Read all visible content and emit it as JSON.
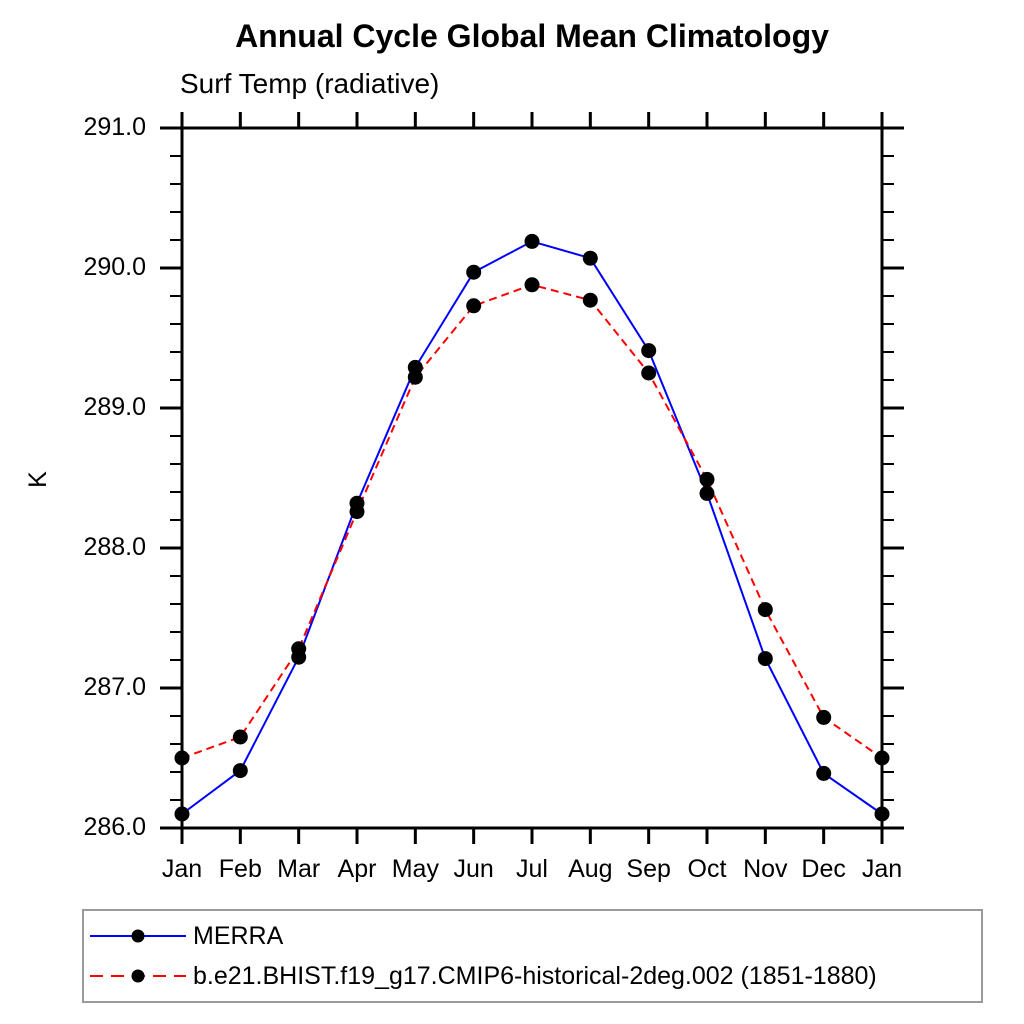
{
  "chart": {
    "title": "Annual Cycle Global Mean Climatology",
    "subtitle": "Surf Temp (radiative)",
    "ylabel": "K"
  },
  "legend": {
    "items": [
      {
        "label": "MERRA",
        "color": "#0000ff",
        "style": "solid",
        "marker_color": "#000000"
      },
      {
        "label": "b.e21.BHIST.f19_g17.CMIP6-historical-2deg.002 (1851-1880)",
        "color": "#ff0000",
        "style": "dashed",
        "marker_color": "#000000"
      }
    ]
  },
  "chart_data": {
    "type": "line",
    "title": "Annual Cycle Global Mean Climatology",
    "subtitle": "Surf Temp (radiative)",
    "xlabel": "",
    "ylabel": "K",
    "x": [
      "Jan",
      "Feb",
      "Mar",
      "Apr",
      "May",
      "Jun",
      "Jul",
      "Aug",
      "Sep",
      "Oct",
      "Nov",
      "Dec",
      "Jan"
    ],
    "series": [
      {
        "id": "merra",
        "name": "MERRA",
        "color": "#0000ff",
        "line_style": "solid",
        "marker": "filled-circle",
        "marker_color": "#000000",
        "values": [
          286.1,
          286.41,
          287.22,
          288.32,
          289.29,
          289.97,
          290.19,
          290.07,
          289.41,
          288.39,
          287.21,
          286.39,
          286.1
        ]
      },
      {
        "id": "cesm-bhist",
        "name": "b.e21.BHIST.f19_g17.CMIP6-historical-2deg.002 (1851-1880)",
        "color": "#ff0000",
        "line_style": "dashed",
        "marker": "filled-circle",
        "marker_color": "#000000",
        "values": [
          286.5,
          286.65,
          287.28,
          288.26,
          289.22,
          289.73,
          289.88,
          289.77,
          289.25,
          288.49,
          287.56,
          286.79,
          286.5
        ]
      }
    ],
    "ylim": [
      286.0,
      291.0
    ],
    "ytick_step": 1.0,
    "yminor_step": 0.2,
    "ytick_labels": [
      "286.0",
      "287.0",
      "288.0",
      "289.0",
      "290.0",
      "291.0"
    ],
    "grid": false,
    "frame": "box-with-outward-ticks",
    "legend_position": "bottom-left-box",
    "axis_color": "#000000"
  }
}
